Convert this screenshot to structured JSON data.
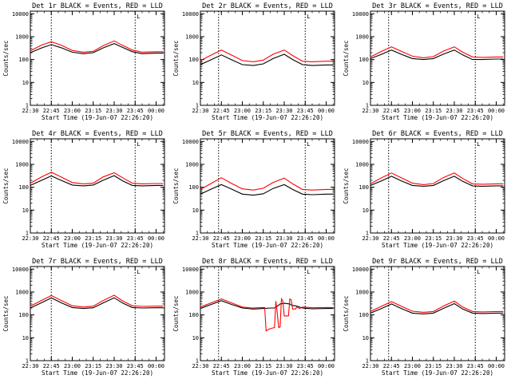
{
  "chart_data": [
    {
      "type": "line",
      "title": "Det 1r BLACK = Events, RED = LLD",
      "xlabel": "Start Time (19-Jun-07 22:26:20)",
      "ylabel": "Counts/sec",
      "yscale": "log",
      "ylim": [
        1,
        13000
      ],
      "xlim": [
        "22:30",
        "00:06"
      ],
      "xticks": [
        "22:30",
        "22:45",
        "23:00",
        "23:15",
        "23:30",
        "23:45",
        "00:00"
      ],
      "yticks": [
        1,
        10,
        100,
        1000,
        10000
      ],
      "marker_label": "L",
      "vlines": [
        "22:45",
        "23:45"
      ],
      "grid": false,
      "series": [
        {
          "color": "#000000",
          "x": [
            "22:30",
            "22:38",
            "22:45",
            "22:52",
            "23:00",
            "23:08",
            "23:15",
            "23:22",
            "23:30",
            "23:36",
            "23:43",
            "23:50",
            "00:00",
            "00:05"
          ],
          "values": [
            200,
            320,
            450,
            330,
            210,
            180,
            200,
            320,
            500,
            340,
            220,
            180,
            190,
            190
          ]
        },
        {
          "color": "#ff0000",
          "x": [
            "22:30",
            "22:38",
            "22:45",
            "22:52",
            "23:00",
            "23:08",
            "23:15",
            "23:22",
            "23:30",
            "23:36",
            "23:43",
            "23:50",
            "00:00",
            "00:05"
          ],
          "values": [
            240,
            430,
            600,
            430,
            250,
            210,
            230,
            400,
            650,
            420,
            260,
            210,
            220,
            220
          ]
        }
      ]
    },
    {
      "type": "line",
      "title": "Det 2r BLACK = Events, RED = LLD",
      "xlabel": "Start Time (19-Jun-07 22:26:20)",
      "ylabel": "Counts/sec",
      "yscale": "log",
      "ylim": [
        1,
        13000
      ],
      "xlim": [
        "22:30",
        "00:06"
      ],
      "xticks": [
        "22:30",
        "22:45",
        "23:00",
        "23:15",
        "23:30",
        "23:45",
        "00:00"
      ],
      "yticks": [
        1,
        10,
        100,
        1000,
        10000
      ],
      "marker_label": "L",
      "vlines": [
        "22:43",
        "23:45"
      ],
      "grid": false,
      "series": [
        {
          "color": "#000000",
          "x": [
            "22:30",
            "22:38",
            "22:45",
            "22:52",
            "23:00",
            "23:08",
            "23:15",
            "23:22",
            "23:30",
            "23:36",
            "23:43",
            "23:50",
            "00:00",
            "00:05"
          ],
          "values": [
            60,
            100,
            160,
            100,
            60,
            55,
            65,
            110,
            170,
            100,
            60,
            55,
            58,
            58
          ]
        },
        {
          "color": "#ff0000",
          "x": [
            "22:30",
            "22:38",
            "22:45",
            "22:52",
            "23:00",
            "23:08",
            "23:15",
            "23:22",
            "23:30",
            "23:36",
            "23:43",
            "23:50",
            "00:00",
            "00:05"
          ],
          "values": [
            90,
            160,
            260,
            160,
            90,
            80,
            95,
            170,
            260,
            150,
            85,
            80,
            85,
            85
          ]
        }
      ]
    },
    {
      "type": "line",
      "title": "Det 3r BLACK = Events, RED = LLD",
      "xlabel": "Start Time (19-Jun-07 22:26:20)",
      "ylabel": "Counts/sec",
      "yscale": "log",
      "ylim": [
        1,
        13000
      ],
      "xlim": [
        "22:30",
        "00:06"
      ],
      "xticks": [
        "22:30",
        "22:45",
        "23:00",
        "23:15",
        "23:30",
        "23:45",
        "00:00"
      ],
      "yticks": [
        1,
        10,
        100,
        1000,
        10000
      ],
      "marker_label": "L",
      "vlines": [
        "22:43",
        "23:45"
      ],
      "grid": false,
      "series": [
        {
          "color": "#000000",
          "x": [
            "22:30",
            "22:38",
            "22:45",
            "22:52",
            "23:00",
            "23:08",
            "23:15",
            "23:22",
            "23:30",
            "23:36",
            "23:43",
            "23:50",
            "00:00",
            "00:05"
          ],
          "values": [
            110,
            170,
            260,
            170,
            110,
            100,
            110,
            170,
            260,
            160,
            100,
            100,
            105,
            105
          ]
        },
        {
          "color": "#ff0000",
          "x": [
            "22:30",
            "22:38",
            "22:45",
            "22:52",
            "23:00",
            "23:08",
            "23:15",
            "23:22",
            "23:30",
            "23:36",
            "23:43",
            "23:50",
            "00:00",
            "00:05"
          ],
          "values": [
            130,
            230,
            360,
            230,
            140,
            120,
            135,
            230,
            360,
            210,
            130,
            125,
            130,
            130
          ]
        }
      ]
    },
    {
      "type": "line",
      "title": "Det 4r BLACK = Events, RED = LLD",
      "xlabel": "Start Time (19-Jun-07 22:26:20)",
      "ylabel": "Counts/sec",
      "yscale": "log",
      "ylim": [
        1,
        13000
      ],
      "xlim": [
        "22:30",
        "00:06"
      ],
      "xticks": [
        "22:30",
        "22:45",
        "23:00",
        "23:15",
        "23:30",
        "23:45",
        "00:00"
      ],
      "yticks": [
        1,
        10,
        100,
        1000,
        10000
      ],
      "marker_label": "L",
      "vlines": [
        "22:45",
        "23:45"
      ],
      "grid": false,
      "series": [
        {
          "color": "#000000",
          "x": [
            "22:30",
            "22:38",
            "22:45",
            "22:52",
            "23:00",
            "23:08",
            "23:15",
            "23:22",
            "23:30",
            "23:36",
            "23:43",
            "23:50",
            "00:00",
            "00:05"
          ],
          "values": [
            120,
            200,
            310,
            200,
            125,
            115,
            125,
            200,
            320,
            190,
            120,
            115,
            120,
            120
          ]
        },
        {
          "color": "#ff0000",
          "x": [
            "22:30",
            "22:38",
            "22:45",
            "22:52",
            "23:00",
            "23:08",
            "23:15",
            "23:22",
            "23:30",
            "23:36",
            "23:43",
            "23:50",
            "00:00",
            "00:05"
          ],
          "values": [
            150,
            280,
            450,
            280,
            160,
            140,
            150,
            280,
            430,
            260,
            150,
            140,
            145,
            145
          ]
        }
      ]
    },
    {
      "type": "line",
      "title": "Det 5r BLACK = Events, RED = LLD",
      "xlabel": "Start Time (19-Jun-07 22:26:20)",
      "ylabel": "Counts/sec",
      "yscale": "log",
      "ylim": [
        1,
        13000
      ],
      "xlim": [
        "22:30",
        "00:06"
      ],
      "xticks": [
        "22:30",
        "22:45",
        "23:00",
        "23:15",
        "23:30",
        "23:45",
        "00:00"
      ],
      "yticks": [
        1,
        10,
        100,
        1000,
        10000
      ],
      "marker_label": "L",
      "vlines": [
        "22:43",
        "23:45"
      ],
      "grid": false,
      "series": [
        {
          "color": "#000000",
          "x": [
            "22:30",
            "22:38",
            "22:45",
            "22:52",
            "23:00",
            "23:08",
            "23:15",
            "23:22",
            "23:30",
            "23:36",
            "23:43",
            "23:50",
            "00:00",
            "00:05"
          ],
          "values": [
            50,
            85,
            130,
            85,
            50,
            45,
            52,
            88,
            130,
            80,
            50,
            47,
            50,
            50
          ]
        },
        {
          "color": "#ff0000",
          "x": [
            "22:30",
            "22:38",
            "22:45",
            "22:52",
            "23:00",
            "23:08",
            "23:15",
            "23:22",
            "23:30",
            "23:36",
            "23:43",
            "23:50",
            "00:00",
            "00:05"
          ],
          "values": [
            80,
            150,
            260,
            150,
            85,
            75,
            90,
            160,
            250,
            140,
            80,
            75,
            80,
            80
          ]
        }
      ]
    },
    {
      "type": "line",
      "title": "Det 6r BLACK = Events, RED = LLD",
      "xlabel": "Start Time (19-Jun-07 22:26:20)",
      "ylabel": "Counts/sec",
      "yscale": "log",
      "ylim": [
        1,
        13000
      ],
      "xlim": [
        "22:30",
        "00:06"
      ],
      "xticks": [
        "22:30",
        "22:45",
        "23:00",
        "23:15",
        "23:30",
        "23:45",
        "00:00"
      ],
      "yticks": [
        1,
        10,
        100,
        1000,
        10000
      ],
      "marker_label": "L",
      "vlines": [
        "22:43",
        "23:45"
      ],
      "grid": false,
      "series": [
        {
          "color": "#000000",
          "x": [
            "22:30",
            "22:38",
            "22:45",
            "22:52",
            "23:00",
            "23:08",
            "23:15",
            "23:22",
            "23:30",
            "23:36",
            "23:43",
            "23:50",
            "00:00",
            "00:05"
          ],
          "values": [
            120,
            190,
            300,
            190,
            120,
            110,
            120,
            190,
            300,
            180,
            115,
            110,
            115,
            115
          ]
        },
        {
          "color": "#ff0000",
          "x": [
            "22:30",
            "22:38",
            "22:45",
            "22:52",
            "23:00",
            "23:08",
            "23:15",
            "23:22",
            "23:30",
            "23:36",
            "23:43",
            "23:50",
            "00:00",
            "00:05"
          ],
          "values": [
            140,
            260,
            420,
            260,
            150,
            130,
            145,
            260,
            420,
            240,
            140,
            135,
            140,
            140
          ]
        }
      ]
    },
    {
      "type": "line",
      "title": "Det 7r BLACK = Events, RED = LLD",
      "xlabel": "Start Time (19-Jun-07 22:26:20)",
      "ylabel": "Counts/sec",
      "yscale": "log",
      "ylim": [
        1,
        13000
      ],
      "xlim": [
        "22:30",
        "00:06"
      ],
      "xticks": [
        "22:30",
        "22:45",
        "23:00",
        "23:15",
        "23:30",
        "23:45",
        "00:00"
      ],
      "yticks": [
        1,
        10,
        100,
        1000,
        10000
      ],
      "marker_label": "L",
      "vlines": [
        "22:45",
        "23:45"
      ],
      "grid": false,
      "series": [
        {
          "color": "#000000",
          "x": [
            "22:30",
            "22:38",
            "22:45",
            "22:52",
            "23:00",
            "23:08",
            "23:15",
            "23:22",
            "23:30",
            "23:36",
            "23:43",
            "23:50",
            "00:00",
            "00:05"
          ],
          "values": [
            200,
            340,
            550,
            340,
            210,
            190,
            205,
            330,
            560,
            330,
            210,
            200,
            205,
            205
          ]
        },
        {
          "color": "#ff0000",
          "x": [
            "22:30",
            "22:38",
            "22:45",
            "22:52",
            "23:00",
            "23:08",
            "23:15",
            "23:22",
            "23:30",
            "23:36",
            "23:43",
            "23:50",
            "00:00",
            "00:05"
          ],
          "values": [
            240,
            430,
            700,
            430,
            250,
            220,
            240,
            420,
            720,
            410,
            250,
            235,
            240,
            240
          ]
        }
      ]
    },
    {
      "type": "line",
      "title": "Det 8r BLACK = Events, RED = LLD",
      "xlabel": "Start Time (19-Jun-07 22:26:20)",
      "ylabel": "Counts/sec",
      "yscale": "log",
      "ylim": [
        1,
        13000
      ],
      "xlim": [
        "22:30",
        "00:06"
      ],
      "xticks": [
        "22:30",
        "22:45",
        "23:00",
        "23:15",
        "23:30",
        "23:45",
        "00:00"
      ],
      "yticks": [
        1,
        10,
        100,
        1000,
        10000
      ],
      "marker_label": "L",
      "vlines": [
        "22:43",
        "23:45"
      ],
      "grid": false,
      "series": [
        {
          "color": "#000000",
          "x": [
            "22:30",
            "22:38",
            "22:45",
            "22:52",
            "23:00",
            "23:08",
            "23:15",
            "23:21",
            "23:23",
            "23:26",
            "23:27",
            "23:30",
            "23:34",
            "23:35",
            "23:37",
            "23:38",
            "23:43",
            "23:50",
            "00:00",
            "00:05"
          ],
          "values": [
            190,
            290,
            420,
            290,
            200,
            180,
            190,
            200,
            200,
            260,
            300,
            320,
            300,
            270,
            250,
            250,
            200,
            185,
            190,
            190
          ]
        },
        {
          "color": "#ff0000",
          "x": [
            "22:30",
            "22:38",
            "22:45",
            "22:52",
            "23:00",
            "23:07",
            "23:14",
            "23:16",
            "23:17",
            "23:18",
            "23:20",
            "23:23",
            "23:24",
            "23:25",
            "23:26",
            "23:27",
            "23:28",
            "23:29",
            "23:30",
            "23:31",
            "23:33",
            "23:34",
            "23:35",
            "23:36",
            "23:38",
            "23:39",
            "23:41",
            "23:43",
            "23:50",
            "00:00",
            "00:05"
          ],
          "values": [
            220,
            340,
            500,
            340,
            220,
            200,
            210,
            210,
            20,
            22,
            25,
            28,
            400,
            120,
            28,
            30,
            500,
            400,
            90,
            90,
            90,
            500,
            450,
            180,
            180,
            220,
            190,
            220,
            205,
            210,
            210
          ]
        }
      ]
    },
    {
      "type": "line",
      "title": "Det 9r BLACK = Events, RED = LLD",
      "xlabel": "Start Time (19-Jun-07 22:26:20)",
      "ylabel": "Counts/sec",
      "yscale": "log",
      "ylim": [
        1,
        13000
      ],
      "xlim": [
        "22:30",
        "00:06"
      ],
      "xticks": [
        "22:30",
        "22:45",
        "23:00",
        "23:15",
        "23:30",
        "23:45",
        "00:00"
      ],
      "yticks": [
        1,
        10,
        100,
        1000,
        10000
      ],
      "marker_label": "L",
      "vlines": [
        "22:43",
        "23:45"
      ],
      "grid": false,
      "series": [
        {
          "color": "#000000",
          "x": [
            "22:30",
            "22:38",
            "22:45",
            "22:52",
            "23:00",
            "23:08",
            "23:15",
            "23:22",
            "23:30",
            "23:36",
            "23:43",
            "23:50",
            "00:00",
            "00:05"
          ],
          "values": [
            120,
            190,
            300,
            190,
            120,
            110,
            120,
            190,
            310,
            180,
            120,
            115,
            120,
            120
          ]
        },
        {
          "color": "#ff0000",
          "x": [
            "22:30",
            "22:38",
            "22:45",
            "22:52",
            "23:00",
            "23:08",
            "23:15",
            "23:22",
            "23:30",
            "23:36",
            "23:43",
            "23:50",
            "00:00",
            "00:05"
          ],
          "values": [
            140,
            240,
            380,
            240,
            145,
            130,
            140,
            240,
            400,
            220,
            140,
            135,
            140,
            140
          ]
        }
      ]
    }
  ]
}
